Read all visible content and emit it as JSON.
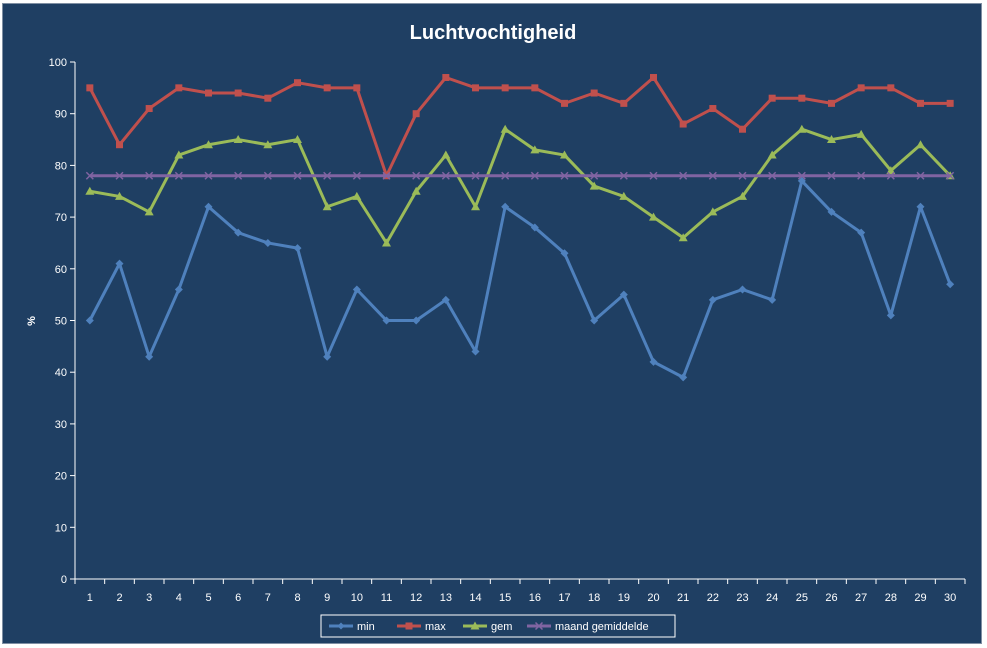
{
  "chart_data": {
    "type": "line",
    "title": "Luchtvochtigheid",
    "xlabel": "",
    "ylabel": "%",
    "ylim": [
      0,
      100
    ],
    "yticks": [
      0,
      10,
      20,
      30,
      40,
      50,
      60,
      70,
      80,
      90,
      100
    ],
    "grid": false,
    "legend_position": "bottom",
    "x": [
      1,
      2,
      3,
      4,
      5,
      6,
      7,
      8,
      9,
      10,
      11,
      12,
      13,
      14,
      15,
      16,
      17,
      18,
      19,
      20,
      21,
      22,
      23,
      24,
      25,
      26,
      27,
      28,
      29,
      30
    ],
    "series": [
      {
        "name": "min",
        "color": "#4F81BD",
        "marker": "diamond",
        "values": [
          50,
          61,
          43,
          56,
          72,
          67,
          65,
          64,
          43,
          56,
          50,
          50,
          54,
          44,
          72,
          68,
          63,
          50,
          55,
          42,
          39,
          54,
          56,
          54,
          77,
          71,
          67,
          51,
          72,
          57
        ]
      },
      {
        "name": "max",
        "color": "#C0504D",
        "marker": "square",
        "values": [
          95,
          84,
          91,
          95,
          94,
          94,
          93,
          96,
          95,
          95,
          78,
          90,
          97,
          95,
          95,
          95,
          92,
          94,
          92,
          97,
          88,
          91,
          87,
          93,
          93,
          92,
          95,
          95,
          92,
          92
        ]
      },
      {
        "name": "gem",
        "color": "#9BBB59",
        "marker": "triangle",
        "values": [
          75,
          74,
          71,
          82,
          84,
          85,
          84,
          85,
          72,
          74,
          65,
          75,
          82,
          72,
          87,
          83,
          82,
          76,
          74,
          70,
          66,
          71,
          74,
          82,
          87,
          85,
          86,
          79,
          84,
          78
        ]
      },
      {
        "name": "maand gemiddelde",
        "color": "#8064A2",
        "marker": "x",
        "values": [
          78,
          78,
          78,
          78,
          78,
          78,
          78,
          78,
          78,
          78,
          78,
          78,
          78,
          78,
          78,
          78,
          78,
          78,
          78,
          78,
          78,
          78,
          78,
          78,
          78,
          78,
          78,
          78,
          78,
          78
        ]
      }
    ]
  }
}
